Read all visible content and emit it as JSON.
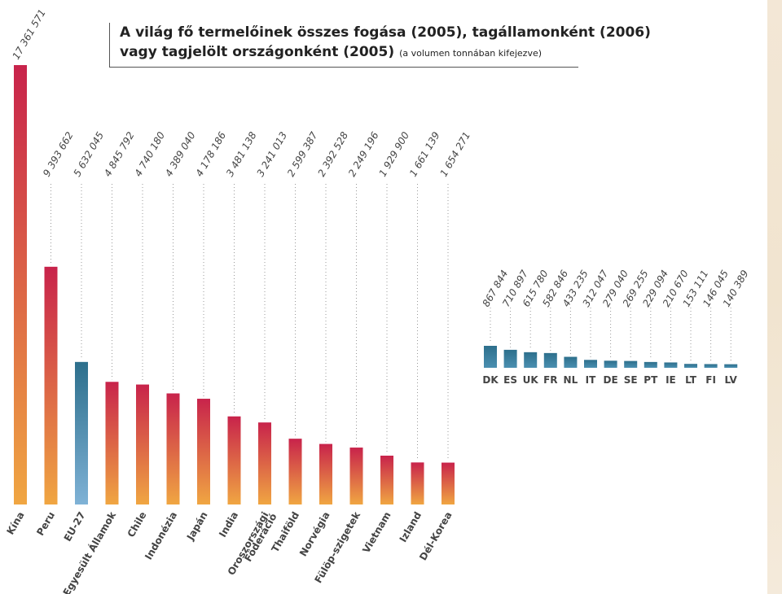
{
  "title": {
    "line1": "A világ fő termelőinek összes fogása (2005), tagállamonként (2006)",
    "line2": "vagy tagjelölt országonként (2005)",
    "note": "(a volumen tonnában kifejezve)"
  },
  "chart_data": [
    {
      "type": "bar",
      "categories": [
        "Kína",
        "Peru",
        "EU-27",
        "Egyesült Államok",
        "Chile",
        "Indonézia",
        "Japán",
        "India",
        "Oroszországi Föderáció",
        "Thaiföld",
        "Norvégia",
        "Fülöp-szigetek",
        "Vietnam",
        "Izland",
        "Dél-Korea"
      ],
      "values": [
        17361571,
        9393662,
        5632045,
        4845792,
        4740180,
        4389040,
        4178186,
        3481138,
        3241013,
        2599387,
        2392528,
        2249196,
        1929900,
        1661139,
        1654271
      ],
      "value_labels": [
        "17 361 571",
        "9 393 662",
        "5 632 045",
        "4 845 792",
        "4 740 180",
        "4 389 040",
        "4 178 186",
        "3 481 138",
        "3 241 013",
        "2 599 387",
        "2 392 528",
        "2 249 196",
        "1 929 900",
        "1 661 139",
        "1 654 271"
      ],
      "highlight_category": "EU-27",
      "colors": {
        "bar_top": "#c8234b",
        "bar_bottom": "#f0a642",
        "highlight_top": "#2d6f8c",
        "highlight_bottom": "#7fb2d6",
        "leader": "#999999"
      },
      "ylim": [
        0,
        17361571
      ]
    },
    {
      "type": "bar",
      "categories": [
        "DK",
        "ES",
        "UK",
        "FR",
        "NL",
        "IT",
        "DE",
        "SE",
        "PT",
        "IE",
        "LT",
        "FI",
        "LV"
      ],
      "values": [
        867844,
        710897,
        615780,
        582846,
        433235,
        312047,
        279040,
        269255,
        229094,
        210670,
        153111,
        146045,
        140389
      ],
      "value_labels": [
        "867 844",
        "710 897",
        "615 780",
        "582 846",
        "433 235",
        "312 047",
        "279 040",
        "269 255",
        "229 094",
        "210 670",
        "153 111",
        "146 045",
        "140 389"
      ],
      "colors": {
        "bar_top": "#2d6f8c",
        "bar_bottom": "#4a8fb0",
        "leader": "#999999"
      },
      "ylim": [
        0,
        17361571
      ]
    }
  ]
}
